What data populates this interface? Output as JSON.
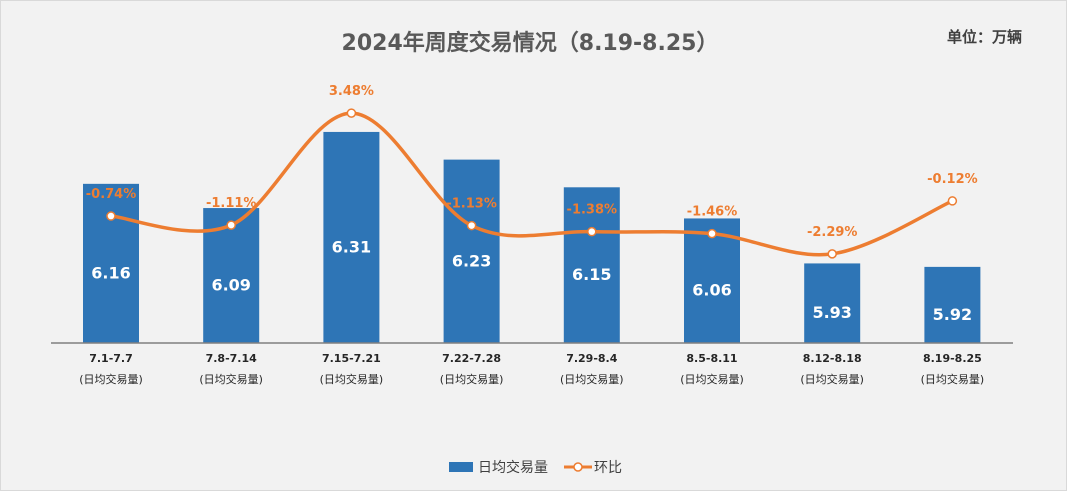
{
  "chart_data": {
    "type": "bar+line",
    "title": "2024年周度交易情况（8.19-8.25）",
    "unit_label": "单位：万辆",
    "categories": [
      [
        "7.1-7.7",
        "(日均交易量)"
      ],
      [
        "7.8-7.14",
        "(日均交易量)"
      ],
      [
        "7.15-7.21",
        "(日均交易量)"
      ],
      [
        "7.22-7.28",
        "(日均交易量)"
      ],
      [
        "7.29-8.4",
        "(日均交易量)"
      ],
      [
        "8.5-8.11",
        "(日均交易量)"
      ],
      [
        "8.12-8.18",
        "(日均交易量)"
      ],
      [
        "8.19-8.25",
        "(日均交易量)"
      ]
    ],
    "series": [
      {
        "name": "日均交易量",
        "type": "bar",
        "color": "#2e75b6",
        "values": [
          6.16,
          6.09,
          6.31,
          6.23,
          6.15,
          6.06,
          5.93,
          5.92
        ],
        "labels": [
          "6.16",
          "6.09",
          "6.31",
          "6.23",
          "6.15",
          "6.06",
          "5.93",
          "5.92"
        ]
      },
      {
        "name": "环比",
        "type": "line",
        "color": "#ed7d31",
        "values": [
          -0.74,
          -1.11,
          3.48,
          -1.13,
          -1.38,
          -1.46,
          -2.29,
          -0.12
        ],
        "labels": [
          "-0.74%",
          "-1.11%",
          "3.48%",
          "-1.13%",
          "-1.38%",
          "-1.46%",
          "-2.29%",
          "-0.12%"
        ]
      }
    ],
    "bar_axis_range": [
      5.7,
      6.4
    ],
    "line_axis_range": [
      -6,
      6
    ],
    "grid": false,
    "legend_position": "bottom"
  }
}
